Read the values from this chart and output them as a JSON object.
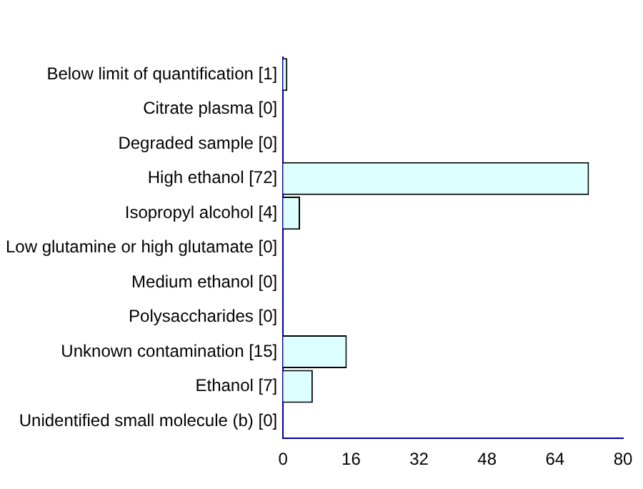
{
  "chart_data": {
    "type": "bar",
    "orientation": "horizontal",
    "categories": [
      "Below limit of quantification [1]",
      "Citrate plasma [0]",
      "Degraded sample [0]",
      "High ethanol [72]",
      "Isopropyl alcohol [4]",
      "Low glutamine or high glutamate [0]",
      "Medium ethanol [0]",
      "Polysaccharides [0]",
      "Unknown contamination [15]",
      "Ethanol [7]",
      "Unidentified small molecule (b) [0]"
    ],
    "values": [
      1,
      0,
      0,
      72,
      4,
      0,
      0,
      0,
      15,
      7,
      0
    ],
    "color": "#ddffff",
    "xlim": [
      0,
      80
    ],
    "xticks": [
      0,
      16,
      32,
      48,
      64,
      80
    ],
    "grid": false,
    "legend": false
  }
}
